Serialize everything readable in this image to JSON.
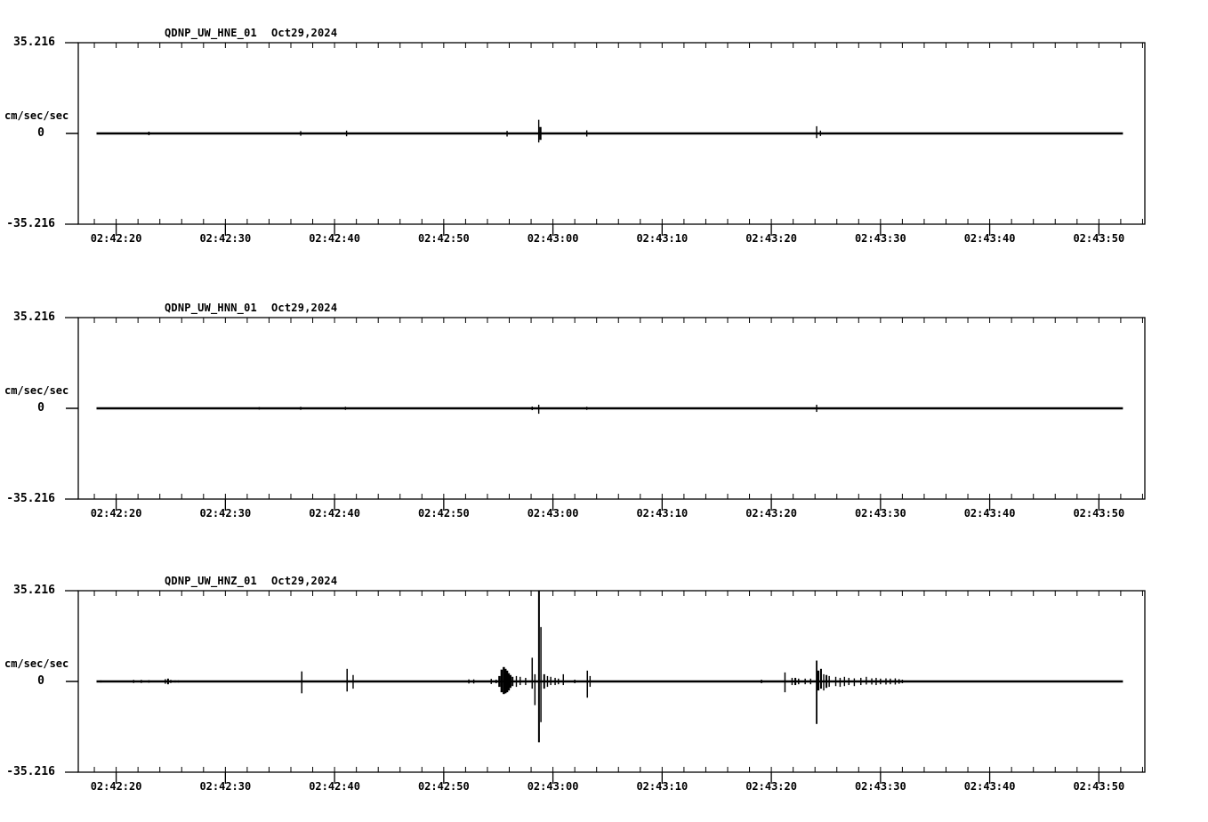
{
  "colors": {
    "foreground": "#000000",
    "background": "#ffffff"
  },
  "x_axis": {
    "minor_step_s": 2,
    "major_step_s": 10,
    "window_start_s": 16.5,
    "window_end_s": 114.2,
    "trace_start_s": 18.2,
    "trace_end_s": 112.2,
    "major_ticks": [
      {
        "t": 20,
        "label": "02:42:20"
      },
      {
        "t": 30,
        "label": "02:42:30"
      },
      {
        "t": 40,
        "label": "02:42:40"
      },
      {
        "t": 50,
        "label": "02:42:50"
      },
      {
        "t": 60,
        "label": "02:43:00"
      },
      {
        "t": 70,
        "label": "02:43:10"
      },
      {
        "t": 80,
        "label": "02:43:20"
      },
      {
        "t": 90,
        "label": "02:43:30"
      },
      {
        "t": 100,
        "label": "02:43:40"
      },
      {
        "t": 110,
        "label": "02:43:50"
      }
    ]
  },
  "chart_data": [
    {
      "type": "line",
      "station": "QDNP_UW_HNE_01",
      "date": "Oct29,2024",
      "ylabel": "cm/sec/sec",
      "ylim": [
        -35.216,
        35.216
      ],
      "ytick_labels": {
        "max": "35.216",
        "zero": "0",
        "min": "-35.216"
      },
      "spikes": [
        [
          23.0,
          0.7,
          0.7
        ],
        [
          36.9,
          0.9,
          0.9
        ],
        [
          41.1,
          1.1,
          1.1
        ],
        [
          55.8,
          1.0,
          1.2
        ],
        [
          58.7,
          5.3,
          3.5
        ],
        [
          58.85,
          2.5,
          2.5,
          2.5
        ],
        [
          63.1,
          1.2,
          1.2
        ],
        [
          84.15,
          2.8,
          1.8
        ],
        [
          84.5,
          1.1,
          1.0
        ]
      ]
    },
    {
      "type": "line",
      "station": "QDNP_UW_HNN_01",
      "date": "Oct29,2024",
      "ylabel": "cm/sec/sec",
      "ylim": [
        -35.216,
        35.216
      ],
      "ytick_labels": {
        "max": "35.216",
        "zero": "0",
        "min": "-35.216"
      },
      "spikes": [
        [
          33.1,
          0.5,
          0.5
        ],
        [
          36.9,
          0.6,
          0.6
        ],
        [
          41.0,
          0.6,
          0.6
        ],
        [
          58.1,
          0.7,
          0.7
        ],
        [
          58.7,
          1.4,
          2.1
        ],
        [
          63.1,
          0.6,
          0.6
        ],
        [
          84.15,
          1.4,
          1.4
        ]
      ]
    },
    {
      "type": "line",
      "station": "QDNP_UW_HNZ_01",
      "date": "Oct29,2024",
      "ylabel": "cm/sec/sec",
      "ylim": [
        -35.216,
        35.216
      ],
      "ytick_labels": {
        "max": "35.216",
        "zero": "0",
        "min": "-35.216"
      },
      "spikes": [
        [
          18.6,
          0.4,
          0.4
        ],
        [
          21.6,
          0.6,
          0.6
        ],
        [
          22.3,
          0.6,
          0.6
        ],
        [
          23.0,
          0.5,
          0.5
        ],
        [
          24.5,
          0.9,
          0.9
        ],
        [
          24.75,
          1.1,
          1.1,
          2
        ],
        [
          25.0,
          0.6,
          0.6
        ],
        [
          25.4,
          0.4,
          0.4
        ],
        [
          25.7,
          0.4,
          0.4
        ],
        [
          37.0,
          3.9,
          4.6,
          1.5
        ],
        [
          41.15,
          4.9,
          3.9,
          1.5
        ],
        [
          41.7,
          2.5,
          2.8
        ],
        [
          52.3,
          0.8,
          0.8
        ],
        [
          52.75,
          0.8,
          0.8
        ],
        [
          54.35,
          1.0,
          1.0
        ],
        [
          54.8,
          0.7,
          0.7
        ],
        [
          55.1,
          2.1,
          2.1,
          2.5
        ],
        [
          55.3,
          4.6,
          4.2,
          2.5
        ],
        [
          55.5,
          5.6,
          4.9,
          2.5
        ],
        [
          55.65,
          4.9,
          4.6,
          2.5
        ],
        [
          55.8,
          4.2,
          4.2,
          2.5
        ],
        [
          55.95,
          3.2,
          3.5,
          2.5
        ],
        [
          56.1,
          2.5,
          2.5,
          2.5
        ],
        [
          56.3,
          1.8,
          1.8,
          2
        ],
        [
          56.65,
          2.1,
          2.1
        ],
        [
          57.0,
          1.8,
          1.4
        ],
        [
          57.5,
          1.4,
          1.4
        ],
        [
          58.1,
          9.2,
          2.8,
          1.5
        ],
        [
          58.35,
          2.8,
          9.2,
          1.5
        ],
        [
          58.72,
          35.2,
          23.6,
          2
        ],
        [
          58.9,
          21.1,
          15.8,
          1.5
        ],
        [
          59.2,
          2.8,
          2.8,
          2
        ],
        [
          59.5,
          2.1,
          2.1
        ],
        [
          59.8,
          1.8,
          1.4
        ],
        [
          60.2,
          1.4,
          1.4
        ],
        [
          60.5,
          1.1,
          1.1
        ],
        [
          60.95,
          2.8,
          1.4
        ],
        [
          62.0,
          0.7,
          0.7
        ],
        [
          63.15,
          4.2,
          6.3,
          1.5
        ],
        [
          63.4,
          2.1,
          2.1
        ],
        [
          79.1,
          0.7,
          0.7
        ],
        [
          81.25,
          3.5,
          4.2,
          1.5
        ],
        [
          81.9,
          1.4,
          1.4
        ],
        [
          82.2,
          1.4,
          1.4,
          2
        ],
        [
          82.5,
          1.1,
          1.1
        ],
        [
          83.1,
          1.1,
          1.1
        ],
        [
          83.6,
          1.1,
          1.1
        ],
        [
          84.15,
          8.1,
          16.5,
          1.8
        ],
        [
          84.3,
          4.2,
          3.5,
          2.5
        ],
        [
          84.55,
          4.9,
          2.8,
          2
        ],
        [
          84.8,
          2.8,
          3.5
        ],
        [
          85.05,
          2.5,
          2.5,
          2
        ],
        [
          85.3,
          2.1,
          2.1
        ],
        [
          85.9,
          1.8,
          1.8
        ],
        [
          86.3,
          1.4,
          2.1
        ],
        [
          86.7,
          1.8,
          1.8
        ],
        [
          87.1,
          1.4,
          1.4
        ],
        [
          87.6,
          1.2,
          1.8
        ],
        [
          88.2,
          1.4,
          1.4
        ],
        [
          88.7,
          1.8,
          1.2
        ],
        [
          89.2,
          1.2,
          1.2
        ],
        [
          89.6,
          1.4,
          1.4
        ],
        [
          90.0,
          1.1,
          1.1
        ],
        [
          90.5,
          1.2,
          1.2
        ],
        [
          90.9,
          1.1,
          1.1
        ],
        [
          91.35,
          1.2,
          1.2
        ],
        [
          91.7,
          0.9,
          0.9
        ],
        [
          92.0,
          0.7,
          0.7
        ]
      ]
    }
  ]
}
